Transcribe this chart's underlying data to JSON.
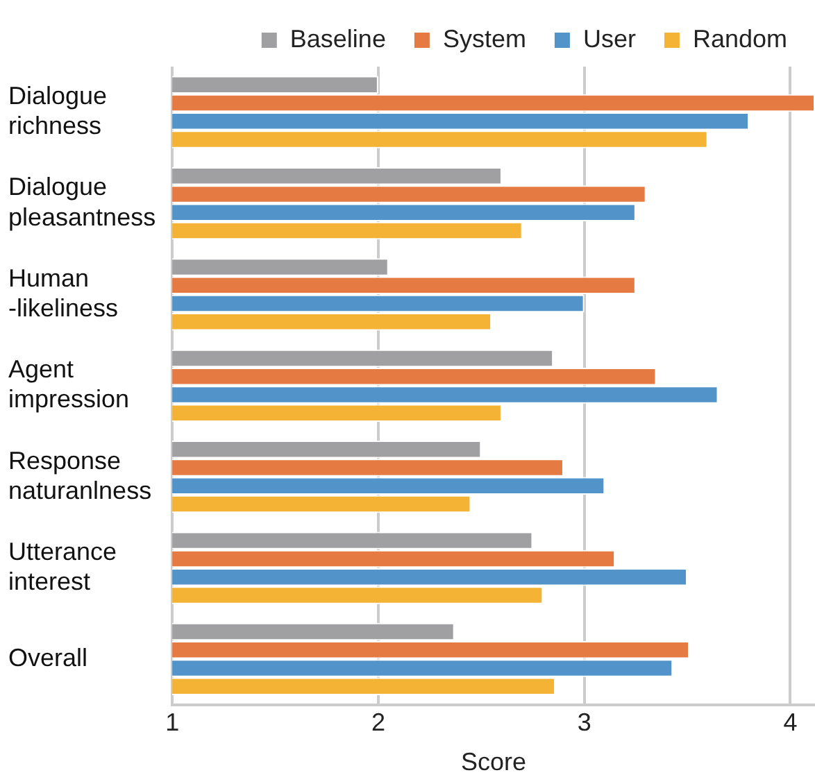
{
  "chart_data": {
    "type": "bar",
    "orientation": "horizontal",
    "xlabel": "Score",
    "categories": [
      "Dialogue\nrichness",
      "Dialogue\npleasantness",
      "Human\n-likeliness",
      "Agent\nimpression",
      "Response\nnaturanlness",
      "Utterance\ninterest",
      "Overall"
    ],
    "series": [
      {
        "name": "Baseline",
        "color": "#a0a0a3",
        "values": [
          2.0,
          2.6,
          2.05,
          2.85,
          2.5,
          2.75,
          2.37
        ]
      },
      {
        "name": "System",
        "color": "#e57a42",
        "values": [
          4.12,
          3.3,
          3.25,
          3.35,
          2.9,
          3.15,
          3.51
        ]
      },
      {
        "name": "User",
        "color": "#5293c9",
        "values": [
          3.8,
          3.25,
          3.0,
          3.65,
          3.1,
          3.5,
          3.43
        ]
      },
      {
        "name": "Random",
        "color": "#f5b335",
        "values": [
          3.6,
          2.7,
          2.55,
          2.6,
          2.45,
          2.8,
          2.86
        ]
      }
    ],
    "xlim": [
      1,
      4.12
    ],
    "xticks": [
      1,
      2,
      3,
      4
    ],
    "grid": "x",
    "legend": "top right"
  }
}
